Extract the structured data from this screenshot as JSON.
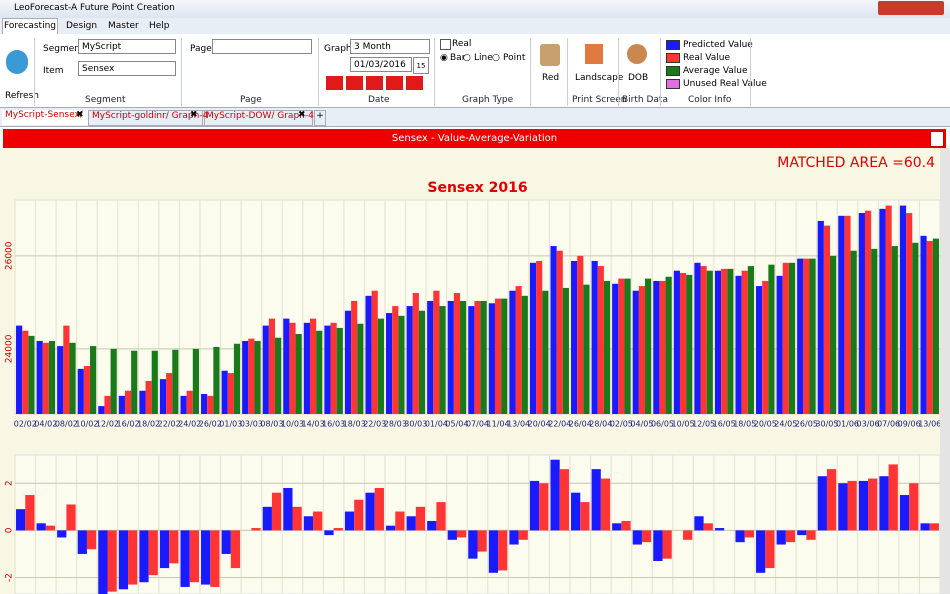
{
  "window": {
    "title": "LeoForecast-A Future Point Creation"
  },
  "menu": [
    "Forecasting",
    "Design",
    "Master",
    "Help"
  ],
  "ribbon": {
    "refresh": "Refresh",
    "segment_label": "Segment",
    "segment_value": "MyScript",
    "item_label": "Item",
    "item_value": "Sensex",
    "segment_group": "Segment",
    "page_label": "Page",
    "page_group": "Page",
    "graph_label": "Graph",
    "graph_value": "3 Month",
    "date_value": "01/03/2016",
    "calendar": "15",
    "date_group": "Date",
    "real": "Real",
    "bar": "Bar",
    "line": "Line",
    "point": "Point",
    "graph_type_group": "Graph Type",
    "color_button": "Red",
    "landscape": "Landscape",
    "print_group": "Print Screen",
    "dob": "DOB",
    "birth_group": "Birth Data",
    "unused_label": "Unused Real Value",
    "unused_color": "#e070e0",
    "color_group": "Color Info"
  },
  "doc_tabs": [
    "MyScript-Sensex/",
    "MyScript-goldinr/ Graph-4",
    "MyScript-DOW/ Graph-4",
    "+"
  ],
  "header": "Sensex - Value-Average-Variation",
  "matched": "MATCHED AREA =60.4",
  "chart_data": [
    {
      "type": "bar",
      "title": "Sensex 2016",
      "categories": [
        "02/02",
        "04/02",
        "08/02",
        "10/02",
        "12/02",
        "16/02",
        "18/02",
        "22/02",
        "24/02",
        "26/02",
        "01/03",
        "03/03",
        "08/03",
        "10/03",
        "14/03",
        "16/03",
        "18/03",
        "22/03",
        "28/03",
        "30/03",
        "01/04",
        "05/04",
        "07/04",
        "11/04",
        "13/04",
        "20/04",
        "22/04",
        "26/04",
        "28/04",
        "02/05",
        "04/05",
        "06/05",
        "10/05",
        "12/05",
        "16/05",
        "18/05",
        "20/05",
        "24/05",
        "26/05",
        "30/05",
        "01/06",
        "03/06",
        "07/06",
        "09/06",
        "13/06"
      ],
      "series": [
        {
          "name": "Predicted Value",
          "color": "#1a1aff",
          "values": [
            24500,
            24170,
            24060,
            23570,
            22770,
            22990,
            23100,
            23350,
            22990,
            23030,
            23530,
            24170,
            24500,
            24650,
            24560,
            24500,
            24820,
            25140,
            24770,
            24920,
            25030,
            25030,
            24920,
            24980,
            25250,
            25850,
            26210,
            25890,
            25890,
            25400,
            25250,
            25460,
            25680,
            25850,
            25680,
            25570,
            25350,
            25570,
            25940,
            26750,
            26860,
            26920,
            27010,
            27080,
            26430
          ]
        },
        {
          "name": "Real Value",
          "color": "#ff3535",
          "values": [
            24390,
            24130,
            24500,
            23630,
            22990,
            23100,
            23310,
            23480,
            23100,
            22990,
            23480,
            24220,
            24650,
            24560,
            24650,
            24560,
            25030,
            25250,
            24920,
            25200,
            25250,
            25200,
            25030,
            25080,
            25350,
            25890,
            26110,
            26000,
            25780,
            25510,
            25350,
            25460,
            25630,
            25780,
            25720,
            25680,
            25460,
            25850,
            25940,
            26650,
            26860,
            26970,
            27080,
            26920,
            26320
          ]
        },
        {
          "name": "Average Value",
          "color": "#1a7a1a",
          "values": [
            24280,
            24170,
            24130,
            24060,
            24000,
            23960,
            23960,
            23980,
            24000,
            24040,
            24110,
            24170,
            24240,
            24320,
            24390,
            24450,
            24540,
            24650,
            24710,
            24820,
            24920,
            25030,
            25030,
            25080,
            25140,
            25250,
            25310,
            25380,
            25460,
            25510,
            25510,
            25550,
            25590,
            25680,
            25720,
            25780,
            25810,
            25850,
            25940,
            26000,
            26110,
            26150,
            26210,
            26280,
            26370
          ]
        }
      ],
      "ylim": [
        22600,
        27200
      ],
      "yticks": [
        24000,
        26000
      ],
      "grid": true
    },
    {
      "type": "bar",
      "series": [
        {
          "color": "#1a1aff",
          "values": [
            0.9,
            0.3,
            -0.3,
            -1.0,
            -2.9,
            -2.5,
            -2.2,
            -1.6,
            -2.4,
            -2.3,
            -1.0,
            0.0,
            1.0,
            1.8,
            0.6,
            -0.2,
            0.8,
            1.6,
            0.2,
            0.6,
            0.4,
            -0.4,
            -1.2,
            -1.8,
            -0.6,
            2.1,
            3.0,
            1.6,
            2.6,
            0.3,
            -0.6,
            -1.3,
            0.0,
            0.6,
            0.1,
            -0.5,
            -1.8,
            -0.6,
            -0.2,
            2.3,
            2.0,
            2.1,
            2.3,
            1.5,
            0.3
          ]
        },
        {
          "color": "#ff3535",
          "values": [
            1.5,
            0.2,
            1.1,
            -0.8,
            -2.6,
            -2.3,
            -1.9,
            -1.4,
            -2.2,
            -2.4,
            -1.6,
            0.1,
            1.6,
            1.0,
            0.8,
            0.1,
            1.3,
            1.8,
            0.8,
            1.0,
            1.2,
            -0.3,
            -0.9,
            -1.7,
            -0.4,
            2.0,
            2.6,
            1.2,
            2.2,
            0.4,
            -0.5,
            -1.2,
            -0.4,
            0.3,
            0.0,
            -0.3,
            -1.6,
            -0.5,
            -0.4,
            2.6,
            2.1,
            2.2,
            2.8,
            2.0,
            0.3
          ]
        }
      ],
      "ylim": [
        -2.7,
        3.2
      ],
      "yticks": [
        -2,
        0,
        2
      ],
      "grid": true
    }
  ]
}
